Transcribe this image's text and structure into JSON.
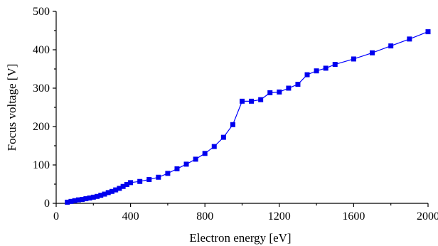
{
  "chart_data": {
    "type": "line",
    "xlabel": "Electron energy [eV]",
    "ylabel": "Focus voltage [V]",
    "xlim": [
      0,
      2000
    ],
    "ylim": [
      0,
      500
    ],
    "x_ticks": [
      0,
      400,
      800,
      1200,
      1600,
      2000
    ],
    "y_ticks": [
      0,
      100,
      200,
      300,
      400,
      500
    ],
    "grid": false,
    "series": [
      {
        "color": "#0000ee",
        "marker": "square",
        "points": [
          [
            60,
            3
          ],
          [
            80,
            5
          ],
          [
            100,
            7
          ],
          [
            120,
            9
          ],
          [
            140,
            10
          ],
          [
            160,
            12
          ],
          [
            180,
            14
          ],
          [
            200,
            16
          ],
          [
            220,
            18
          ],
          [
            240,
            21
          ],
          [
            260,
            24
          ],
          [
            280,
            28
          ],
          [
            300,
            31
          ],
          [
            320,
            35
          ],
          [
            340,
            39
          ],
          [
            360,
            44
          ],
          [
            380,
            49
          ],
          [
            400,
            54
          ],
          [
            450,
            57
          ],
          [
            500,
            62
          ],
          [
            550,
            68
          ],
          [
            600,
            78
          ],
          [
            650,
            90
          ],
          [
            700,
            102
          ],
          [
            750,
            115
          ],
          [
            800,
            130
          ],
          [
            850,
            148
          ],
          [
            900,
            172
          ],
          [
            950,
            205
          ],
          [
            1000,
            266
          ],
          [
            1050,
            266
          ],
          [
            1100,
            270
          ],
          [
            1150,
            288
          ],
          [
            1200,
            290
          ],
          [
            1250,
            300
          ],
          [
            1300,
            310
          ],
          [
            1350,
            335
          ],
          [
            1400,
            345
          ],
          [
            1450,
            352
          ],
          [
            1500,
            362
          ],
          [
            1600,
            376
          ],
          [
            1700,
            392
          ],
          [
            1800,
            410
          ],
          [
            1900,
            428
          ],
          [
            2000,
            447
          ]
        ]
      }
    ]
  }
}
